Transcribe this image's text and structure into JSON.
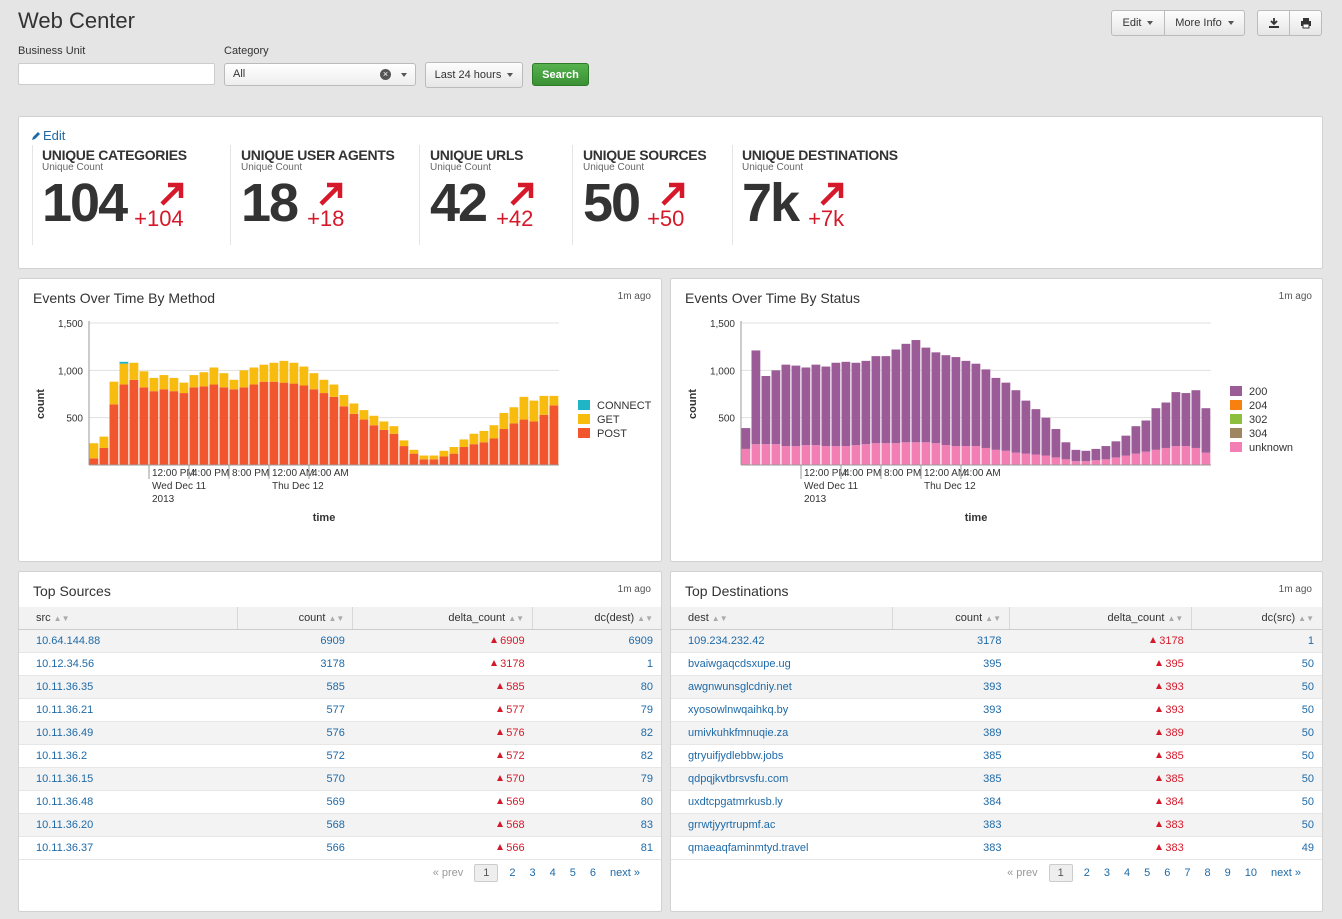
{
  "app": {
    "title": "Web Center"
  },
  "toolbar": {
    "edit_label": "Edit",
    "more_info_label": "More Info"
  },
  "filters": {
    "business_unit_label": "Business Unit",
    "business_unit_value": "",
    "category_label": "Category",
    "category_value": "All",
    "timerange_label": "Last 24 hours",
    "search_label": "Search"
  },
  "kpi": {
    "edit_label": "Edit",
    "items": [
      {
        "title": "UNIQUE CATEGORIES",
        "sub": "Unique Count",
        "value": "104",
        "delta": "+104"
      },
      {
        "title": "UNIQUE USER AGENTS",
        "sub": "Unique Count",
        "value": "18",
        "delta": "+18"
      },
      {
        "title": "UNIQUE URLS",
        "sub": "Unique Count",
        "value": "42",
        "delta": "+42"
      },
      {
        "title": "UNIQUE SOURCES",
        "sub": "Unique Count",
        "value": "50",
        "delta": "+50"
      },
      {
        "title": "UNIQUE DESTINATIONS",
        "sub": "Unique Count",
        "value": "7k",
        "delta": "+7k"
      }
    ]
  },
  "colors": {
    "accent_red": "#d6192a",
    "link": "#1e6aa8",
    "connect": "#1fb5c7",
    "get": "#f7bc0e",
    "post": "#f2562e",
    "s200": "#9b5b96",
    "s204": "#f7800e",
    "s302": "#8dbf3f",
    "s304": "#a08660",
    "unknown": "#f27eb4"
  },
  "chart_data": [
    {
      "type": "bar",
      "title": "Events Over Time By Method",
      "updated": "1m ago",
      "xlabel": "time",
      "ylabel": "count",
      "ylim": [
        0,
        1500
      ],
      "yticks": [
        "500",
        "1,000",
        "1,500"
      ],
      "xticks": [
        {
          "index": 6,
          "lines": [
            "12:00 PM",
            "Wed Dec 11",
            "2013"
          ]
        },
        {
          "index": 10,
          "lines": [
            "4:00 PM"
          ]
        },
        {
          "index": 14,
          "lines": [
            "8:00 PM"
          ]
        },
        {
          "index": 18,
          "lines": [
            "12:00 AM",
            "Thu Dec 12"
          ]
        },
        {
          "index": 22,
          "lines": [
            "4:00 AM"
          ]
        }
      ],
      "legend": [
        "CONNECT",
        "GET",
        "POST"
      ],
      "series": [
        {
          "name": "POST",
          "values": [
            70,
            180,
            640,
            850,
            900,
            820,
            780,
            800,
            780,
            760,
            820,
            830,
            850,
            820,
            800,
            820,
            850,
            880,
            880,
            870,
            860,
            840,
            800,
            760,
            720,
            620,
            540,
            480,
            420,
            370,
            330,
            200,
            120,
            60,
            60,
            90,
            120,
            190,
            220,
            240,
            280,
            380,
            440,
            480,
            460,
            530,
            630
          ]
        },
        {
          "name": "GET",
          "values": [
            160,
            120,
            240,
            220,
            180,
            170,
            140,
            150,
            140,
            110,
            130,
            150,
            180,
            150,
            100,
            180,
            180,
            180,
            200,
            230,
            220,
            200,
            170,
            140,
            130,
            120,
            110,
            100,
            100,
            90,
            80,
            60,
            40,
            40,
            40,
            60,
            70,
            80,
            110,
            120,
            140,
            170,
            170,
            240,
            220,
            200,
            100
          ]
        },
        {
          "name": "CONNECT",
          "values": [
            0,
            0,
            0,
            20,
            0,
            0,
            0,
            0,
            0,
            0,
            0,
            0,
            0,
            0,
            0,
            0,
            0,
            0,
            0,
            0,
            0,
            0,
            0,
            0,
            0,
            0,
            0,
            0,
            0,
            0,
            0,
            0,
            0,
            0,
            0,
            0,
            0,
            0,
            0,
            0,
            0,
            0,
            0,
            0,
            0,
            0,
            0
          ]
        }
      ]
    },
    {
      "type": "bar",
      "title": "Events Over Time By Status",
      "updated": "1m ago",
      "xlabel": "time",
      "ylabel": "count",
      "ylim": [
        0,
        1500
      ],
      "yticks": [
        "500",
        "1,000",
        "1,500"
      ],
      "xticks": [
        {
          "index": 6,
          "lines": [
            "12:00 PM",
            "Wed Dec 11",
            "2013"
          ]
        },
        {
          "index": 10,
          "lines": [
            "4:00 PM"
          ]
        },
        {
          "index": 14,
          "lines": [
            "8:00 PM"
          ]
        },
        {
          "index": 18,
          "lines": [
            "12:00 AM",
            "Thu Dec 12"
          ]
        },
        {
          "index": 22,
          "lines": [
            "4:00 AM"
          ]
        }
      ],
      "legend": [
        "200",
        "204",
        "302",
        "304",
        "unknown"
      ],
      "series": [
        {
          "name": "unknown",
          "values": [
            170,
            220,
            220,
            220,
            200,
            200,
            210,
            210,
            200,
            200,
            200,
            210,
            220,
            230,
            230,
            230,
            240,
            240,
            240,
            230,
            210,
            200,
            200,
            200,
            180,
            160,
            150,
            130,
            120,
            110,
            100,
            80,
            60,
            40,
            40,
            50,
            60,
            80,
            100,
            120,
            140,
            160,
            180,
            200,
            200,
            180,
            130
          ]
        },
        {
          "name": "200",
          "values": [
            220,
            990,
            720,
            780,
            860,
            850,
            820,
            850,
            840,
            880,
            890,
            870,
            880,
            920,
            920,
            990,
            1040,
            1080,
            1000,
            960,
            950,
            940,
            900,
            870,
            830,
            760,
            720,
            660,
            560,
            480,
            400,
            300,
            180,
            120,
            110,
            120,
            140,
            170,
            210,
            290,
            330,
            440,
            480,
            570,
            560,
            610,
            470
          ]
        }
      ]
    }
  ],
  "top_sources": {
    "title": "Top Sources",
    "updated": "1m ago",
    "columns": [
      "src",
      "count",
      "delta_count",
      "dc(dest)"
    ],
    "rows": [
      [
        "10.64.144.88",
        "6909",
        "6909",
        "6909"
      ],
      [
        "10.12.34.56",
        "3178",
        "3178",
        "1"
      ],
      [
        "10.11.36.35",
        "585",
        "585",
        "80"
      ],
      [
        "10.11.36.21",
        "577",
        "577",
        "79"
      ],
      [
        "10.11.36.49",
        "576",
        "576",
        "82"
      ],
      [
        "10.11.36.2",
        "572",
        "572",
        "82"
      ],
      [
        "10.11.36.15",
        "570",
        "570",
        "79"
      ],
      [
        "10.11.36.48",
        "569",
        "569",
        "80"
      ],
      [
        "10.11.36.20",
        "568",
        "568",
        "83"
      ],
      [
        "10.11.36.37",
        "566",
        "566",
        "81"
      ]
    ],
    "pager": {
      "prev": "« prev",
      "pages": [
        "1",
        "2",
        "3",
        "4",
        "5",
        "6"
      ],
      "next": "next »"
    }
  },
  "top_destinations": {
    "title": "Top Destinations",
    "updated": "1m ago",
    "columns": [
      "dest",
      "count",
      "delta_count",
      "dc(src)"
    ],
    "rows": [
      [
        "109.234.232.42",
        "3178",
        "3178",
        "1"
      ],
      [
        "bvaiwgaqcdsxupe.ug",
        "395",
        "395",
        "50"
      ],
      [
        "awgnwunsglcdniy.net",
        "393",
        "393",
        "50"
      ],
      [
        "xyosowlnwqaihkq.by",
        "393",
        "393",
        "50"
      ],
      [
        "umivkuhkfmnuqie.za",
        "389",
        "389",
        "50"
      ],
      [
        "gtryuifjydlebbw.jobs",
        "385",
        "385",
        "50"
      ],
      [
        "qdpqjkvtbrsvsfu.com",
        "385",
        "385",
        "50"
      ],
      [
        "uxdtcpgatmrkusb.ly",
        "384",
        "384",
        "50"
      ],
      [
        "grrwtjyyrtrupmf.ac",
        "383",
        "383",
        "50"
      ],
      [
        "qmaeaqfaminmtyd.travel",
        "383",
        "383",
        "49"
      ]
    ],
    "pager": {
      "prev": "« prev",
      "pages": [
        "1",
        "2",
        "3",
        "4",
        "5",
        "6",
        "7",
        "8",
        "9",
        "10"
      ],
      "next": "next »"
    }
  }
}
